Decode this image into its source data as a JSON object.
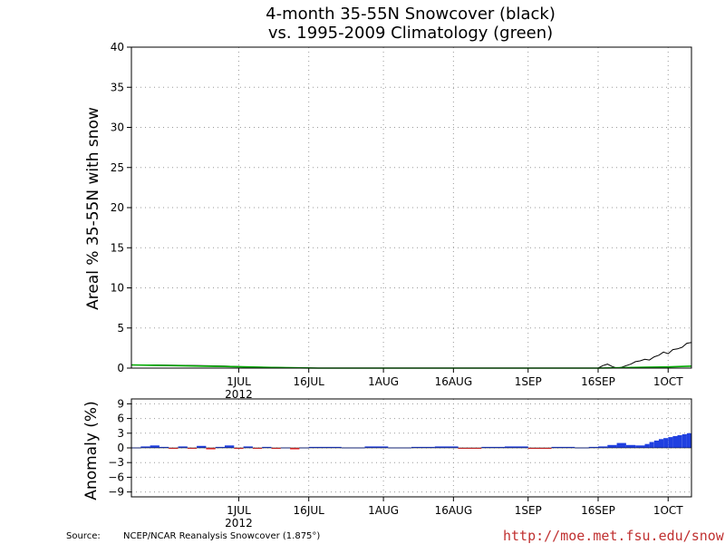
{
  "colors": {
    "observed": "#000000",
    "climatology": "#00aa00",
    "anomaly_positive": "#2040e0",
    "anomaly_negative": "#ff3030",
    "grid": "#999999",
    "url": "#c03030"
  },
  "chart_data": [
    {
      "type": "line",
      "title": "4-month 35-55N Snowcover (black)",
      "subtitle": "vs. 1995-2009 Climatology (green)",
      "ylabel": "Areal % 35-55N with snow",
      "ylim": [
        0,
        40
      ],
      "yticks": [
        0,
        5,
        10,
        15,
        20,
        25,
        30,
        35,
        40
      ],
      "xlim": [
        0,
        120
      ],
      "xticks": [
        {
          "x": 23,
          "label": "1JUL"
        },
        {
          "x": 38,
          "label": "16JUL"
        },
        {
          "x": 54,
          "label": "1AUG"
        },
        {
          "x": 69,
          "label": "16AUG"
        },
        {
          "x": 85,
          "label": "1SEP"
        },
        {
          "x": 100,
          "label": "16SEP"
        },
        {
          "x": 115,
          "label": "1OCT"
        }
      ],
      "year_label": "2012",
      "grid": true,
      "series": [
        {
          "name": "black",
          "x": [
            0,
            5,
            10,
            15,
            20,
            25,
            30,
            34,
            40,
            60,
            90,
            100,
            101,
            102,
            103,
            104,
            105,
            106,
            107,
            108,
            109,
            110,
            111,
            112,
            113,
            114,
            115,
            116,
            117,
            118,
            119,
            120
          ],
          "values": [
            0.4,
            0.4,
            0.35,
            0.3,
            0.25,
            0.15,
            0.1,
            0.05,
            0.0,
            0.0,
            0.0,
            0.0,
            0.3,
            0.5,
            0.2,
            0.0,
            0.1,
            0.3,
            0.5,
            0.8,
            0.9,
            1.1,
            1.0,
            1.4,
            1.6,
            2.0,
            1.8,
            2.3,
            2.4,
            2.6,
            3.1,
            3.2
          ]
        },
        {
          "name": "green",
          "x": [
            0,
            5,
            10,
            15,
            20,
            25,
            30,
            34,
            40,
            100,
            105,
            110,
            115,
            120
          ],
          "values": [
            0.4,
            0.35,
            0.3,
            0.25,
            0.2,
            0.15,
            0.08,
            0.05,
            0.0,
            0.0,
            0.05,
            0.1,
            0.15,
            0.25
          ]
        }
      ]
    },
    {
      "type": "bar",
      "ylabel": "Anomaly (%)",
      "ylim": [
        -10,
        10
      ],
      "yticks": [
        -9,
        -6,
        -3,
        0,
        3,
        6,
        9
      ],
      "xlim": [
        0,
        120
      ],
      "xticks": [
        {
          "x": 23,
          "label": "1JUL"
        },
        {
          "x": 38,
          "label": "16JUL"
        },
        {
          "x": 54,
          "label": "1AUG"
        },
        {
          "x": 69,
          "label": "16AUG"
        },
        {
          "x": 85,
          "label": "1SEP"
        },
        {
          "x": 100,
          "label": "16SEP"
        },
        {
          "x": 115,
          "label": "1OCT"
        }
      ],
      "year_label": "2012",
      "grid": true,
      "x": [
        0,
        2,
        4,
        6,
        8,
        10,
        12,
        14,
        16,
        18,
        20,
        22,
        24,
        26,
        28,
        30,
        32,
        34,
        36,
        38,
        40,
        45,
        50,
        55,
        60,
        65,
        70,
        75,
        80,
        85,
        90,
        95,
        98,
        100,
        102,
        104,
        106,
        108,
        110,
        111,
        112,
        113,
        114,
        115,
        116,
        117,
        118,
        119
      ],
      "values": [
        0.1,
        0.3,
        0.5,
        0.2,
        -0.2,
        0.3,
        -0.1,
        0.4,
        -0.3,
        0.2,
        0.5,
        -0.2,
        0.3,
        -0.1,
        0.2,
        -0.2,
        0.1,
        -0.3,
        0.1,
        0.2,
        0.2,
        0.1,
        0.3,
        0.1,
        0.2,
        0.3,
        -0.1,
        0.2,
        0.3,
        -0.2,
        0.2,
        0.1,
        0.2,
        0.3,
        0.6,
        1.0,
        0.6,
        0.5,
        0.8,
        1.2,
        1.5,
        1.8,
        2.0,
        2.2,
        2.4,
        2.6,
        2.8,
        3.0
      ]
    }
  ],
  "footer": {
    "source_label": "Source:",
    "source_text": "NCEP/NCAR Reanalysis Snowcover (1.875°)",
    "url": "http://moe.met.fsu.edu/snow"
  }
}
